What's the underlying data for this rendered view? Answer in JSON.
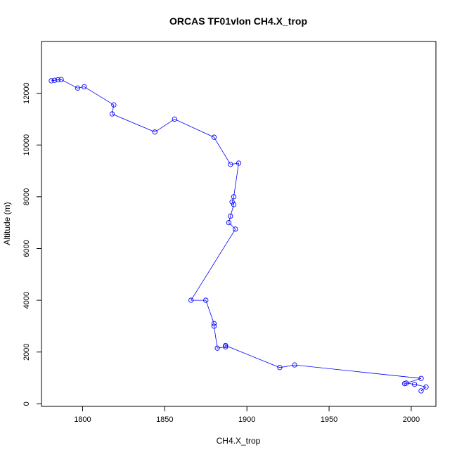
{
  "chart_data": {
    "type": "line",
    "title": "ORCAS TF01vlon CH4.X_trop",
    "xlabel": "CH4.X_trop",
    "ylabel": "Altitude (m)",
    "xlim": [
      1775,
      2015
    ],
    "ylim": [
      -100,
      14000
    ],
    "xticks": [
      1800,
      1850,
      1900,
      1950,
      2000
    ],
    "yticks": [
      0,
      2000,
      4000,
      6000,
      8000,
      10000,
      12000
    ],
    "grid": false,
    "series": [
      {
        "color": "#0000ff",
        "marker": "open-circle",
        "x": [
          2006,
          2009,
          2002,
          1997,
          1996,
          2006,
          1929,
          1920,
          1887,
          1887,
          1882,
          1880,
          1880,
          1875,
          1866,
          1893,
          1889,
          1890,
          1892,
          1891,
          1892,
          1895,
          1890,
          1880,
          1856,
          1844,
          1818,
          1819,
          1801,
          1797,
          1787,
          1785,
          1783,
          1781
        ],
        "y": [
          500,
          650,
          750,
          800,
          780,
          980,
          1500,
          1400,
          2250,
          2200,
          2150,
          3000,
          3100,
          4000,
          4000,
          6750,
          7000,
          7250,
          7700,
          7800,
          8000,
          9300,
          9250,
          10300,
          11000,
          10500,
          11200,
          11550,
          12250,
          12200,
          12530,
          12520,
          12500,
          12480
        ]
      }
    ]
  }
}
